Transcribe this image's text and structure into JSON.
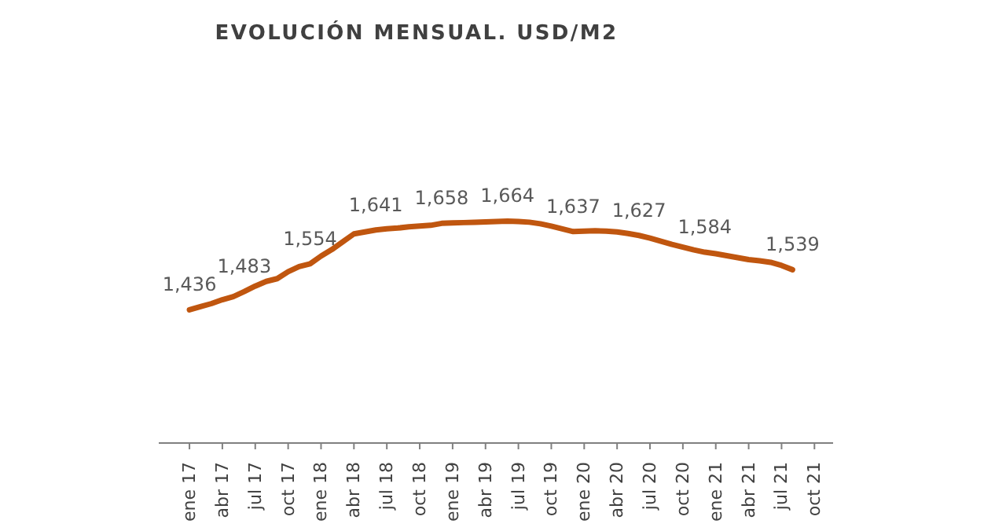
{
  "chart_data": {
    "type": "line",
    "title": "EVOLUCIÓN MENSUAL. USD/M2",
    "categories": [
      "ene 17",
      null,
      null,
      "abr 17",
      null,
      null,
      "jul 17",
      null,
      null,
      "oct 17",
      null,
      null,
      "ene 18",
      null,
      null,
      "abr 18",
      null,
      null,
      "jul 18",
      null,
      null,
      "oct 18",
      null,
      null,
      "ene 19",
      null,
      null,
      "abr 19",
      null,
      null,
      "jul 19",
      null,
      null,
      "oct 19",
      null,
      null,
      "ene 20",
      null,
      null,
      "abr 20",
      null,
      null,
      "jul 20",
      null,
      null,
      "oct 20",
      null,
      null,
      "ene 21",
      null,
      null,
      "abr 21",
      null,
      null,
      "jul 21",
      null,
      null,
      "oct 21"
    ],
    "series": [
      {
        "color": "#c0560f",
        "values": [
          1436,
          1444,
          1452,
          1462,
          1470,
          1483,
          1497,
          1509,
          1516,
          1534,
          1547,
          1554,
          1574,
          1591,
          1611,
          1631,
          1636,
          1641,
          1644,
          1646,
          1649,
          1651,
          1653,
          1658,
          1659,
          1660,
          1661,
          1662,
          1663,
          1664,
          1663,
          1661,
          1657,
          1651,
          1644,
          1637,
          1638,
          1639,
          1638,
          1636,
          1632,
          1627,
          1620,
          1612,
          1604,
          1597,
          1590,
          1584,
          1580,
          1575,
          1570,
          1565,
          1562,
          1558,
          1550,
          1539,
          null,
          null
        ],
        "value_labels": [
          "1,436",
          null,
          null,
          null,
          null,
          "1,483",
          null,
          null,
          null,
          null,
          null,
          "1,554",
          null,
          null,
          null,
          null,
          null,
          "1,641",
          null,
          null,
          null,
          null,
          null,
          "1,658",
          null,
          null,
          null,
          null,
          null,
          "1,664",
          null,
          null,
          null,
          null,
          null,
          "1,637",
          null,
          null,
          null,
          null,
          null,
          "1,627",
          null,
          null,
          null,
          null,
          null,
          "1,584",
          null,
          null,
          null,
          null,
          null,
          null,
          null,
          "1,539",
          null,
          null
        ]
      }
    ],
    "grid": false,
    "legend": false,
    "marker": "none",
    "line_style": "solid",
    "tick_labels": "x"
  }
}
